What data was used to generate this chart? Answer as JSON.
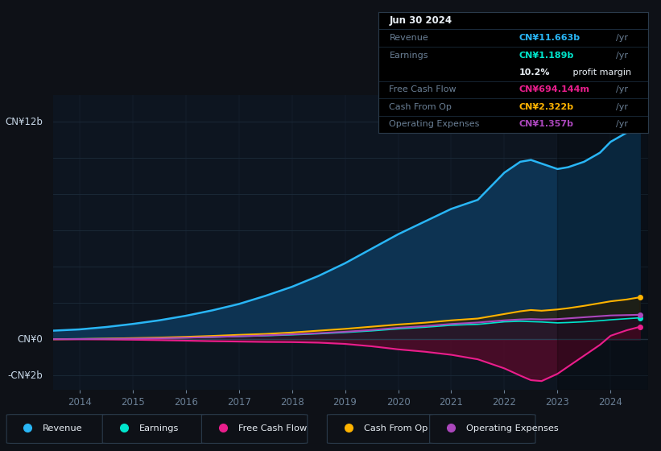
{
  "bg_color": "#0e1117",
  "chart_bg": "#0d1520",
  "grid_color": "#1c2b3a",
  "years": [
    2013.5,
    2014.0,
    2014.5,
    2015.0,
    2015.5,
    2016.0,
    2016.5,
    2017.0,
    2017.5,
    2018.0,
    2018.5,
    2019.0,
    2019.5,
    2020.0,
    2020.5,
    2021.0,
    2021.5,
    2022.0,
    2022.3,
    2022.5,
    2022.7,
    2023.0,
    2023.2,
    2023.5,
    2023.8,
    2024.0,
    2024.3,
    2024.55
  ],
  "revenue": [
    0.48,
    0.55,
    0.68,
    0.85,
    1.05,
    1.3,
    1.6,
    1.95,
    2.4,
    2.9,
    3.5,
    4.2,
    5.0,
    5.8,
    6.5,
    7.2,
    7.7,
    9.2,
    9.8,
    9.9,
    9.7,
    9.4,
    9.5,
    9.8,
    10.3,
    10.9,
    11.4,
    11.663
  ],
  "earnings": [
    0.02,
    0.03,
    0.04,
    0.055,
    0.07,
    0.09,
    0.12,
    0.16,
    0.2,
    0.25,
    0.31,
    0.38,
    0.47,
    0.58,
    0.67,
    0.78,
    0.83,
    0.97,
    1.0,
    0.98,
    0.96,
    0.91,
    0.93,
    0.97,
    1.03,
    1.08,
    1.14,
    1.189
  ],
  "free_cash_flow": [
    0.01,
    0.01,
    0.0,
    -0.02,
    -0.04,
    -0.07,
    -0.1,
    -0.12,
    -0.14,
    -0.15,
    -0.18,
    -0.25,
    -0.38,
    -0.55,
    -0.68,
    -0.85,
    -1.1,
    -1.6,
    -2.0,
    -2.25,
    -2.3,
    -1.9,
    -1.5,
    -0.9,
    -0.3,
    0.2,
    0.5,
    0.694
  ],
  "cash_from_op": [
    0.01,
    0.02,
    0.04,
    0.07,
    0.1,
    0.14,
    0.19,
    0.25,
    0.3,
    0.38,
    0.48,
    0.58,
    0.7,
    0.82,
    0.92,
    1.05,
    1.15,
    1.4,
    1.55,
    1.62,
    1.58,
    1.65,
    1.72,
    1.85,
    2.0,
    2.1,
    2.2,
    2.322
  ],
  "op_expenses": [
    0.01,
    0.015,
    0.025,
    0.04,
    0.06,
    0.09,
    0.13,
    0.17,
    0.22,
    0.28,
    0.34,
    0.42,
    0.52,
    0.64,
    0.73,
    0.85,
    0.93,
    1.05,
    1.1,
    1.12,
    1.1,
    1.12,
    1.16,
    1.22,
    1.28,
    1.32,
    1.34,
    1.357
  ],
  "revenue_color": "#29b6f6",
  "earnings_color": "#00e5cc",
  "fcf_color": "#e91e8c",
  "cashop_color": "#ffb300",
  "opex_color": "#ab47bc",
  "revenue_fill": "#0d3352",
  "earnings_fill": "#003322",
  "fcf_fill": "#5a0a2a",
  "cashop_fill": "#3a2500",
  "opex_fill": "#2a0a3a",
  "ylim": [
    -2.8,
    13.5
  ],
  "xlim": [
    2013.5,
    2024.7
  ],
  "xticks": [
    2014,
    2015,
    2016,
    2017,
    2018,
    2019,
    2020,
    2021,
    2022,
    2023,
    2024
  ],
  "tooltip_date": "Jun 30 2024",
  "tooltip_revenue_label": "Revenue",
  "tooltip_revenue_val": "CN¥11.663b",
  "tooltip_earnings_label": "Earnings",
  "tooltip_earnings_val": "CN¥1.189b",
  "tooltip_margin": "10.2%",
  "tooltip_margin_text": " profit margin",
  "tooltip_fcf_label": "Free Cash Flow",
  "tooltip_fcf_val": "CN¥694.144m",
  "tooltip_cashop_label": "Cash From Op",
  "tooltip_cashop_val": "CN¥2.322b",
  "tooltip_opex_label": "Operating Expenses",
  "tooltip_opex_val": "CN¥1.357b",
  "yr_label": "/yr",
  "legend_items": [
    "Revenue",
    "Earnings",
    "Free Cash Flow",
    "Cash From Op",
    "Operating Expenses"
  ],
  "legend_colors": [
    "#29b6f6",
    "#00e5cc",
    "#e91e8c",
    "#ffb300",
    "#ab47bc"
  ]
}
